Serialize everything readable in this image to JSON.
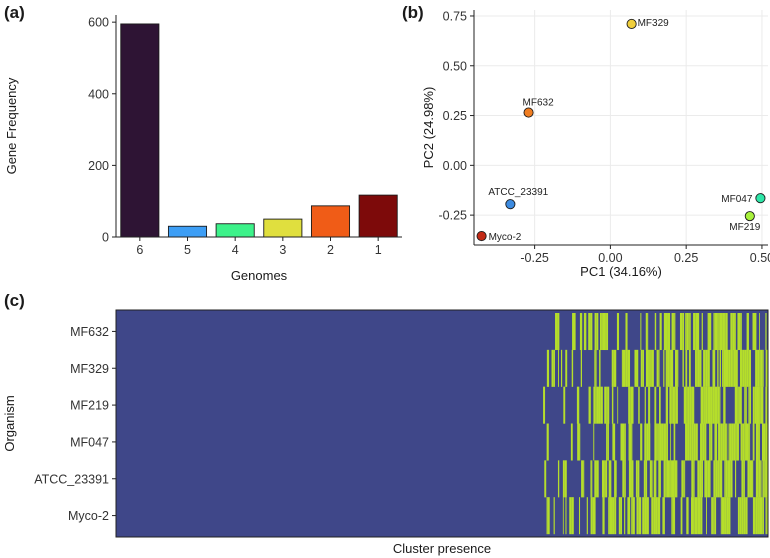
{
  "panels": {
    "a": {
      "label": "(a)"
    },
    "b": {
      "label": "(b)"
    },
    "c": {
      "label": "(c)"
    }
  },
  "chart_data": [
    {
      "type": "bar",
      "categories": [
        "6",
        "5",
        "4",
        "3",
        "2",
        "1"
      ],
      "values": [
        595,
        30,
        37,
        50,
        87,
        117
      ],
      "colors": [
        "#2e1434",
        "#3d9ef5",
        "#3df28a",
        "#e0df3e",
        "#f05c17",
        "#7d0a0a"
      ],
      "xlabel": "Genomes",
      "ylabel": "Gene Frequency",
      "ylim": [
        0,
        620
      ],
      "yticks": [
        0,
        200,
        400,
        600
      ],
      "grid": false
    },
    {
      "type": "scatter",
      "xlabel": "PC1 (34.16%)",
      "ylabel": "PC2 (24.98%)",
      "xlim": [
        -0.45,
        0.52
      ],
      "ylim": [
        -0.4,
        0.78
      ],
      "xticks": [
        -0.25,
        0.0,
        0.25,
        0.5
      ],
      "xtick_labels": [
        "-0.25",
        "0.00",
        "0.25",
        "0.50"
      ],
      "yticks": [
        -0.25,
        0.0,
        0.25,
        0.5,
        0.75
      ],
      "ytick_labels": [
        "-0.25",
        "0.00",
        "0.25",
        "0.50",
        "0.75"
      ],
      "grid": true,
      "points": [
        {
          "label": "MF329",
          "x": 0.07,
          "y": 0.71,
          "color": "#f0cf3c"
        },
        {
          "label": "MF632",
          "x": -0.27,
          "y": 0.265,
          "color": "#f07d21"
        },
        {
          "label": "ATCC_23391",
          "x": -0.33,
          "y": -0.195,
          "color": "#3d8be0"
        },
        {
          "label": "MF047",
          "x": 0.495,
          "y": -0.165,
          "color": "#2ee6a8"
        },
        {
          "label": "MF219",
          "x": 0.46,
          "y": -0.255,
          "color": "#a8f23c"
        },
        {
          "label": "Myco-2",
          "x": -0.425,
          "y": -0.355,
          "color": "#c22a16"
        }
      ]
    },
    {
      "type": "heatmap",
      "xlabel": "Cluster presence",
      "ylabel": "Organism",
      "rows": [
        "MF632",
        "MF329",
        "MF219",
        "MF047",
        "ATCC_23391",
        "Myco-2"
      ],
      "colors": {
        "absent": "#3f4789",
        "present": "#b5de2b"
      },
      "core_fraction": 0.655
    }
  ]
}
